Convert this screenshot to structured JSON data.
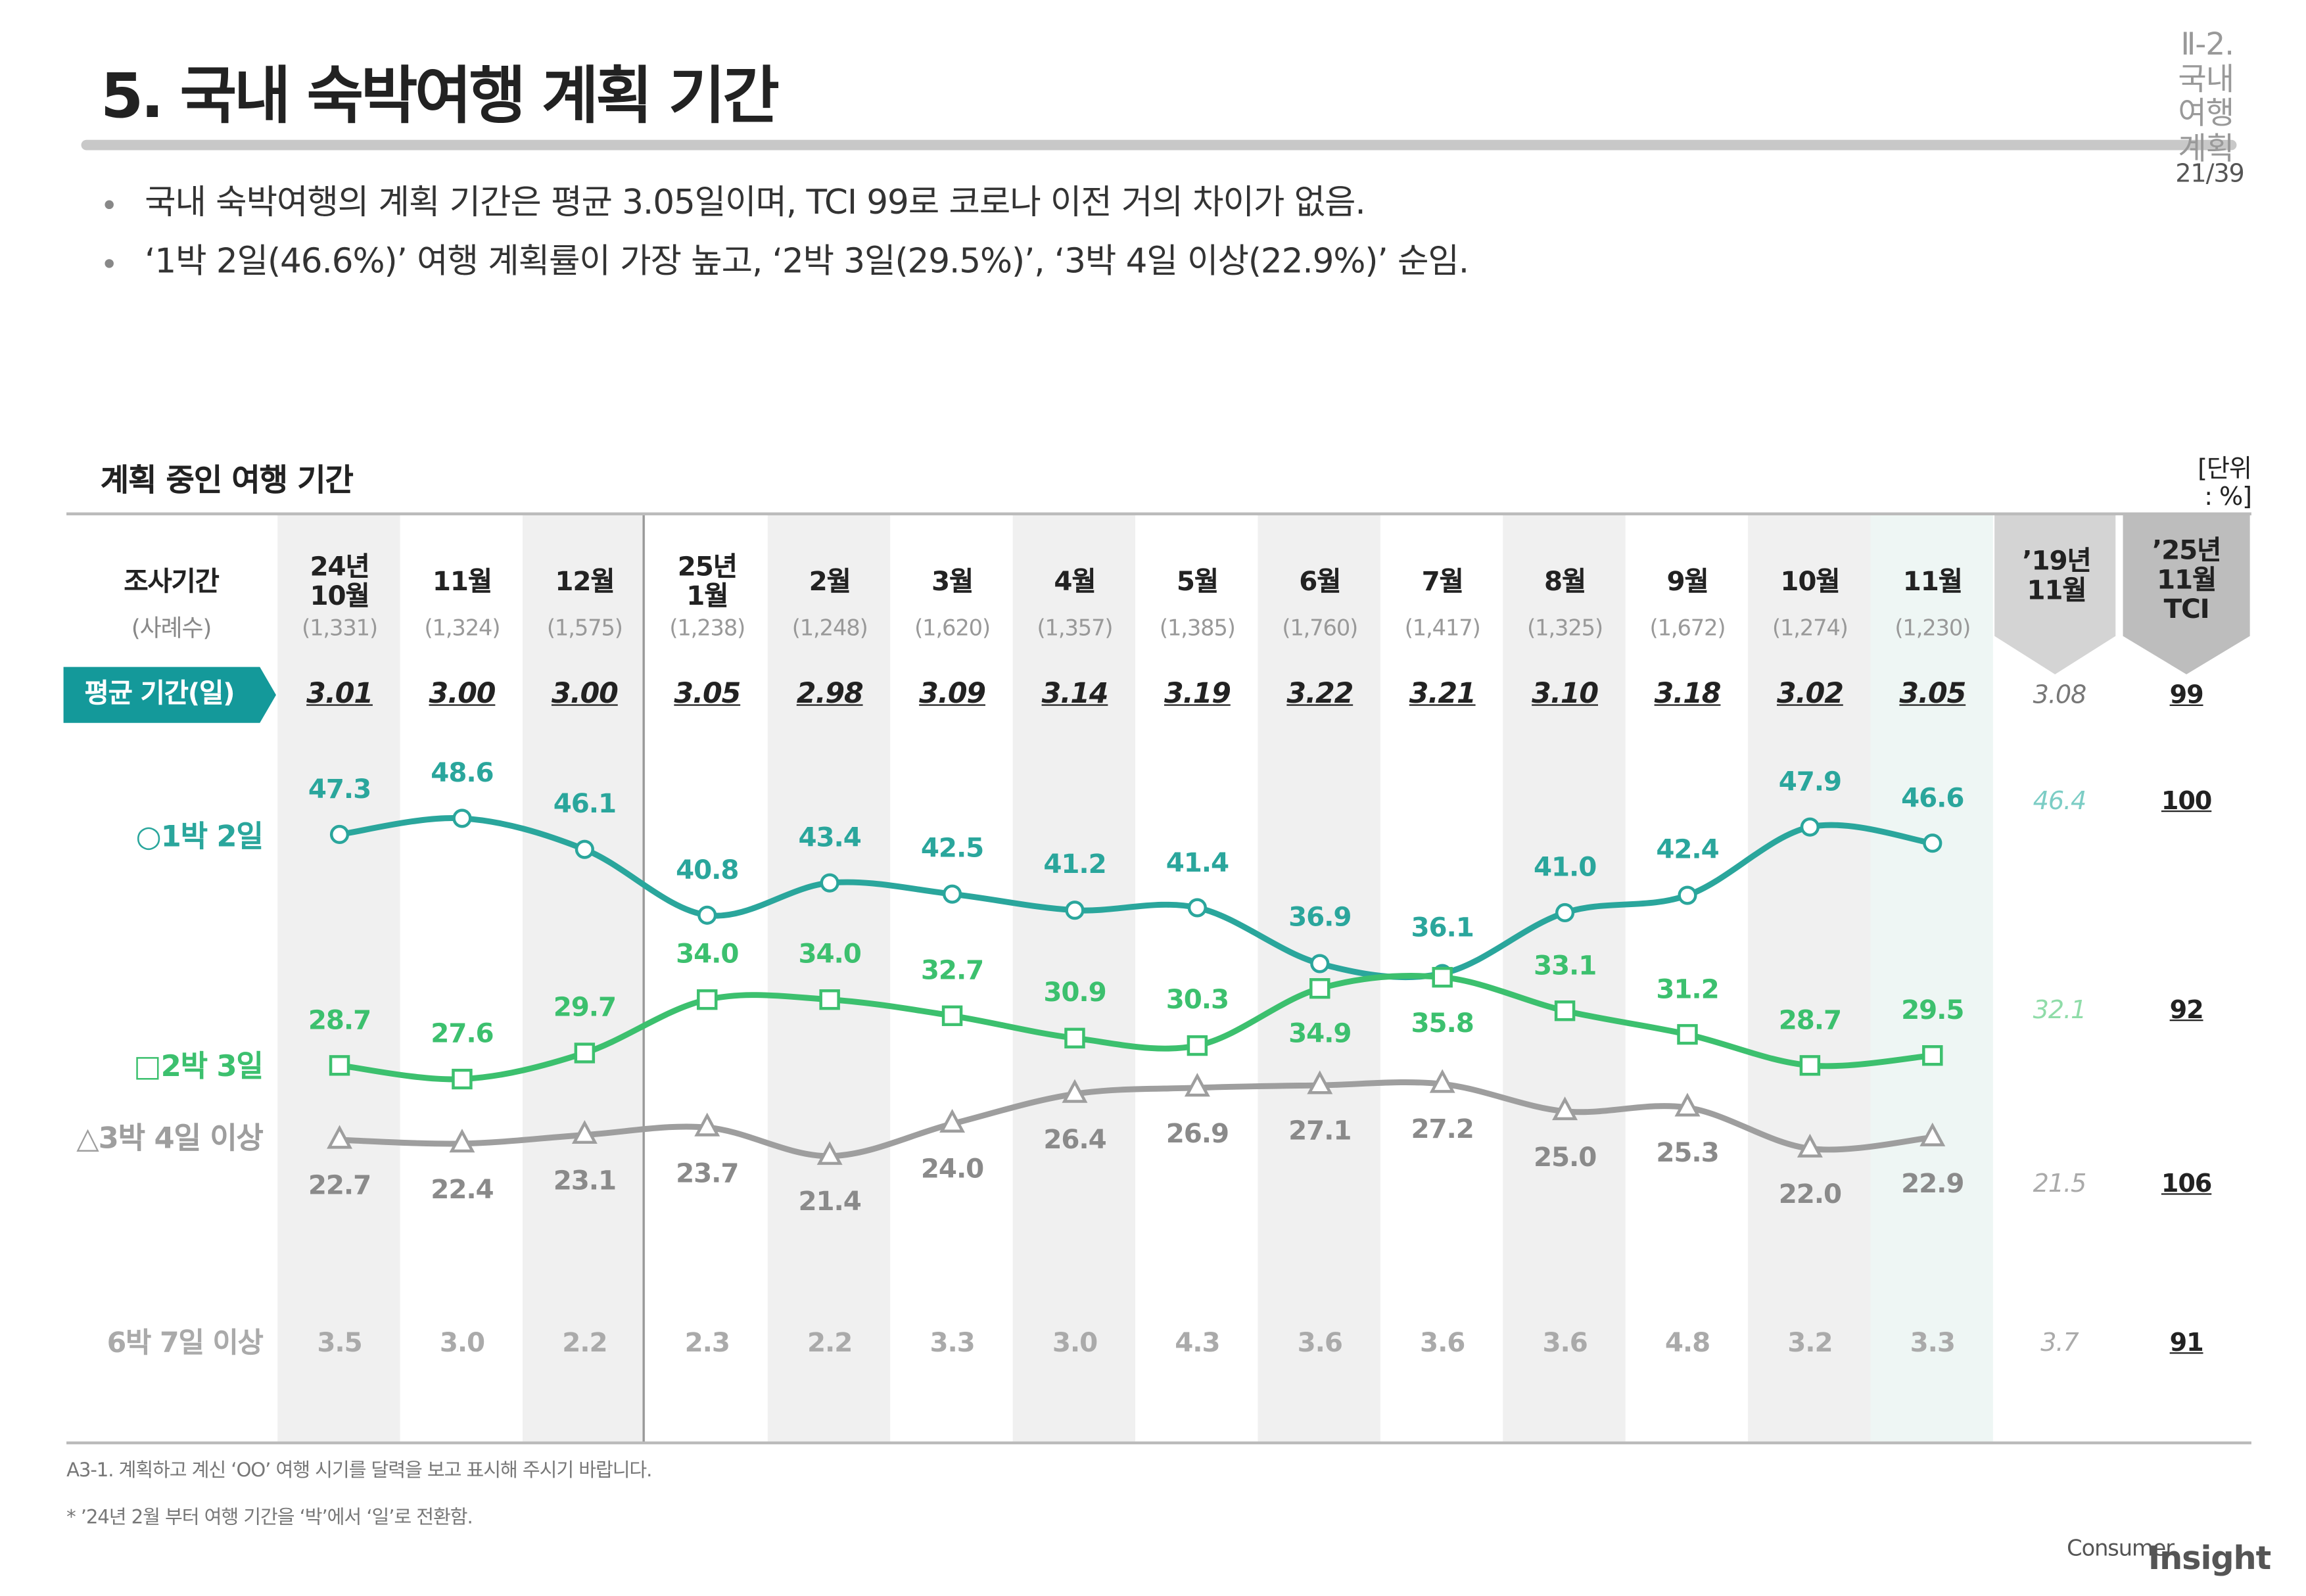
{
  "header": {
    "title": "5. 국내 숙박여행 계획 기간",
    "section": "Ⅱ-2. 국내여행 계획",
    "page": "21/39"
  },
  "bullets": [
    "국내 숙박여행의 계획 기간은 평균 3.05일이며, TCI 99로 코로나 이전 거의 차이가 없음.",
    "‘1박 2일(46.6%)’ 여행 계획률이 가장 높고, ‘2박 3일(29.5%)’, ‘3박 4일 이상(22.9%)’ 순임."
  ],
  "table": {
    "title": "계획 중인 여행 기간",
    "unit": "[단위 : %]",
    "row_header": "조사기간",
    "row_subheader": "(사례수)",
    "sample_sizes": [
      "(1,331)",
      "(1,324)",
      "(1,575)",
      "(1,238)",
      "(1,248)",
      "(1,620)",
      "(1,357)",
      "(1,385)",
      "(1,760)",
      "(1,417)",
      "(1,325)",
      "(1,672)",
      "(1,274)",
      "(1,230)"
    ],
    "avg_label": "평균 기간(일)",
    "avg": [
      "3.01",
      "3.00",
      "3.00",
      "3.05",
      "2.98",
      "3.09",
      "3.14",
      "3.19",
      "3.22",
      "3.21",
      "3.10",
      "3.18",
      "3.02",
      "3.05"
    ],
    "long_label": "6박 7일 이상",
    "long_stay": [
      "3.5",
      "3.0",
      "2.2",
      "2.3",
      "2.2",
      "3.3",
      "3.0",
      "4.3",
      "3.6",
      "3.6",
      "3.6",
      "4.8",
      "3.2",
      "3.3"
    ],
    "compare_header": "’19년\n11월",
    "compare": [
      "3.08",
      "46.4",
      "32.1",
      "21.5",
      "3.7"
    ],
    "tci_header": "’25년\n11월\nTCI",
    "tci": [
      "99",
      "100",
      "92",
      "106",
      "91"
    ]
  },
  "chart_data": {
    "type": "line",
    "categories": [
      "24년\n10월",
      "11월",
      "12월",
      "25년\n1월",
      "2월",
      "3월",
      "4월",
      "5월",
      "6월",
      "7월",
      "8월",
      "9월",
      "10월",
      "11월"
    ],
    "series": [
      {
        "name": "○1박 2일",
        "color": "#2aa69c",
        "marker": "circle",
        "values": [
          47.3,
          48.6,
          46.1,
          40.8,
          43.4,
          42.5,
          41.2,
          41.4,
          36.9,
          36.1,
          41.0,
          42.4,
          47.9,
          46.6
        ],
        "value_labels": [
          "47.3",
          "48.6",
          "46.1",
          "40.8",
          "43.4",
          "42.5",
          "41.2",
          "41.4",
          "36.9",
          "36.1",
          "41.0",
          "42.4",
          "47.9",
          "46.6"
        ]
      },
      {
        "name": "□2박 3일",
        "color": "#3cc06e",
        "marker": "square",
        "values": [
          28.7,
          27.6,
          29.7,
          34.0,
          34.0,
          32.7,
          30.9,
          30.3,
          34.9,
          35.8,
          33.1,
          31.2,
          28.7,
          29.5
        ],
        "value_labels": [
          "28.7",
          "27.6",
          "29.7",
          "34.0",
          "34.0",
          "32.7",
          "30.9",
          "30.3",
          "34.9",
          "35.8",
          "33.1",
          "31.2",
          "28.7",
          "29.5"
        ]
      },
      {
        "name": "△3박 4일 이상",
        "color": "#9e9e9e",
        "marker": "triangle",
        "values": [
          22.7,
          22.4,
          23.1,
          23.7,
          21.4,
          24.0,
          26.4,
          26.9,
          27.1,
          27.2,
          25.0,
          25.3,
          22.0,
          22.9
        ],
        "value_labels": [
          "22.7",
          "22.4",
          "23.1",
          "23.7",
          "21.4",
          "24.0",
          "26.4",
          "26.9",
          "27.1",
          "27.2",
          "25.0",
          "25.3",
          "22.0",
          "22.9"
        ]
      }
    ],
    "ylim": [
      20,
      50
    ],
    "smooth": true
  },
  "footnotes": [
    "A3-1. 계획하고 계신 ‘OO’ 여행 시기를 달력을 보고 표시해 주시기 바랍니다.",
    "* ’24년 2월 부터 여행 기간을 ‘박’에서 ‘일’로 전환함."
  ],
  "logo": [
    "Consumer",
    "Insight"
  ]
}
